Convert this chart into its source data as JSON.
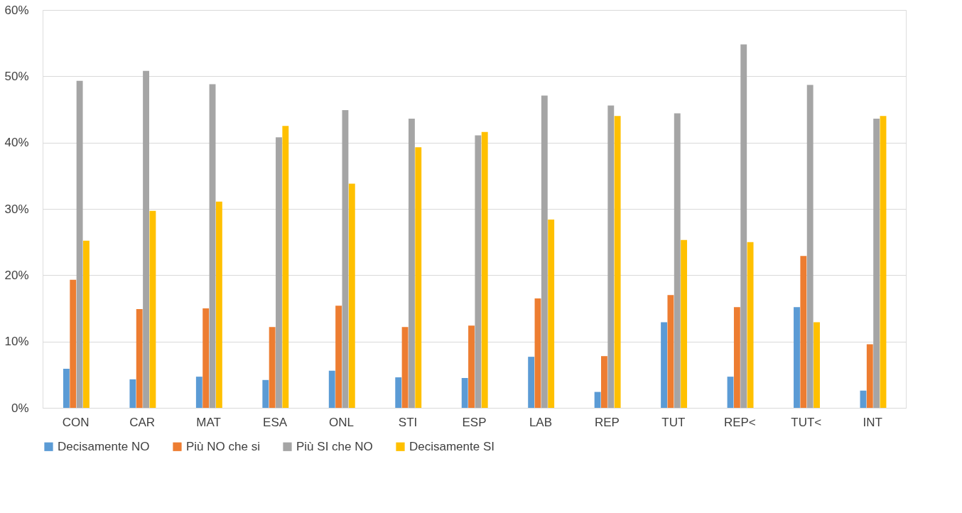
{
  "chart_data": {
    "type": "bar",
    "categories": [
      "CON",
      "CAR",
      "MAT",
      "ESA",
      "ONL",
      "STI",
      "ESP",
      "LAB",
      "REP",
      "TUT",
      "REP<",
      "TUT<",
      "INT"
    ],
    "series": [
      {
        "name": "Decisamente NO",
        "color": "#5b9bd5",
        "values": [
          5.9,
          4.3,
          4.7,
          4.2,
          5.6,
          4.6,
          4.5,
          7.7,
          2.4,
          12.9,
          4.7,
          15.2,
          2.6
        ]
      },
      {
        "name": "Più NO che si",
        "color": "#ed7d31",
        "values": [
          19.3,
          14.9,
          15.0,
          12.2,
          15.4,
          12.2,
          12.4,
          16.5,
          7.8,
          17.0,
          15.2,
          22.9,
          9.6
        ]
      },
      {
        "name": "Più SI che NO",
        "color": "#a5a5a5",
        "values": [
          49.3,
          50.8,
          48.8,
          40.8,
          44.9,
          43.6,
          41.1,
          47.1,
          45.6,
          44.4,
          54.8,
          48.7,
          43.6
        ]
      },
      {
        "name": "Decisamente SI",
        "color": "#ffc000",
        "values": [
          25.2,
          29.7,
          31.1,
          42.5,
          33.8,
          39.3,
          41.6,
          28.4,
          44.0,
          25.3,
          25.0,
          12.9,
          44.0
        ]
      }
    ],
    "ylim": [
      0,
      60
    ],
    "yticks": [
      {
        "value": 0,
        "label": "0%"
      },
      {
        "value": 10,
        "label": "10%"
      },
      {
        "value": 20,
        "label": "20%"
      },
      {
        "value": 30,
        "label": "30%"
      },
      {
        "value": 40,
        "label": "40%"
      },
      {
        "value": 50,
        "label": "50%"
      },
      {
        "value": 60,
        "label": "60%"
      }
    ],
    "grid": "y",
    "legend": "bottom"
  }
}
